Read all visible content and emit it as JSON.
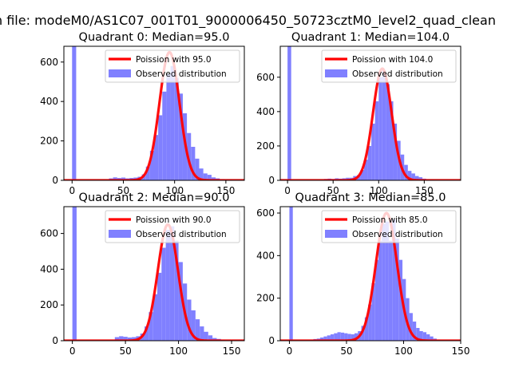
{
  "figure_title": "n file: modeM0/AS1C07_001T01_9000006450_50723cztM0_level2_quad_clean",
  "colors": {
    "poisson": "#ff0000",
    "observed": "#8080ff",
    "frame": "#000000"
  },
  "chart_data": [
    {
      "type": "bar",
      "title": "Quadrant 0: Median=95.0",
      "xlim": [
        -8,
        168
      ],
      "ylim": [
        0,
        680
      ],
      "xticks": [
        0,
        50,
        100,
        150
      ],
      "yticks": [
        0,
        200,
        400,
        600
      ],
      "legend": "top-right",
      "poisson_mean": 95,
      "series": [
        {
          "name": "Poission with 95.0",
          "kind": "line",
          "mean": 95,
          "peak": 650
        },
        {
          "name": "Observed distribution",
          "kind": "histogram",
          "bin_width": 4,
          "bins": [
            [
              0,
              680
            ],
            [
              36,
              10
            ],
            [
              40,
              15
            ],
            [
              44,
              12
            ],
            [
              48,
              14
            ],
            [
              52,
              10
            ],
            [
              56,
              12
            ],
            [
              60,
              14
            ],
            [
              64,
              18
            ],
            [
              68,
              30
            ],
            [
              72,
              70
            ],
            [
              76,
              150
            ],
            [
              80,
              230
            ],
            [
              84,
              330
            ],
            [
              88,
              450
            ],
            [
              92,
              540
            ],
            [
              96,
              580
            ],
            [
              100,
              520
            ],
            [
              104,
              440
            ],
            [
              108,
              340
            ],
            [
              112,
              240
            ],
            [
              116,
              170
            ],
            [
              120,
              110
            ],
            [
              124,
              60
            ],
            [
              128,
              35
            ],
            [
              132,
              28
            ],
            [
              136,
              15
            ],
            [
              140,
              10
            ],
            [
              144,
              6
            ],
            [
              148,
              4
            ],
            [
              152,
              3
            ]
          ]
        }
      ]
    },
    {
      "type": "bar",
      "title": "Quadrant 1: Median=104.0",
      "xlim": [
        -8,
        190
      ],
      "ylim": [
        0,
        780
      ],
      "xticks": [
        0,
        50,
        100,
        150
      ],
      "yticks": [
        0,
        200,
        400,
        600
      ],
      "legend": "top-right",
      "poisson_mean": 104,
      "series": [
        {
          "name": "Poission with 104.0",
          "kind": "line",
          "mean": 104,
          "peak": 650
        },
        {
          "name": "Observed distribution",
          "kind": "histogram",
          "bin_width": 4,
          "bins": [
            [
              0,
              780
            ],
            [
              40,
              8
            ],
            [
              44,
              10
            ],
            [
              48,
              8
            ],
            [
              52,
              12
            ],
            [
              56,
              10
            ],
            [
              60,
              12
            ],
            [
              64,
              15
            ],
            [
              68,
              15
            ],
            [
              72,
              25
            ],
            [
              76,
              30
            ],
            [
              80,
              60
            ],
            [
              84,
              120
            ],
            [
              88,
              200
            ],
            [
              92,
              330
            ],
            [
              96,
              460
            ],
            [
              100,
              600
            ],
            [
              104,
              640
            ],
            [
              108,
              560
            ],
            [
              112,
              460
            ],
            [
              116,
              330
            ],
            [
              120,
              230
            ],
            [
              124,
              150
            ],
            [
              128,
              90
            ],
            [
              132,
              55
            ],
            [
              136,
              40
            ],
            [
              140,
              25
            ],
            [
              144,
              18
            ],
            [
              148,
              10
            ],
            [
              152,
              6
            ],
            [
              156,
              4
            ],
            [
              160,
              3
            ],
            [
              164,
              2
            ]
          ]
        }
      ]
    },
    {
      "type": "bar",
      "title": "Quadrant 2: Median=90.0",
      "xlim": [
        -8,
        162
      ],
      "ylim": [
        0,
        750
      ],
      "xticks": [
        0,
        50,
        100,
        150
      ],
      "yticks": [
        0,
        200,
        400,
        600
      ],
      "legend": "top-right",
      "poisson_mean": 90,
      "series": [
        {
          "name": "Poission with 90.0",
          "kind": "line",
          "mean": 90,
          "peak": 650
        },
        {
          "name": "Observed distribution",
          "kind": "histogram",
          "bin_width": 4,
          "bins": [
            [
              0,
              750
            ],
            [
              40,
              20
            ],
            [
              44,
              25
            ],
            [
              48,
              22
            ],
            [
              52,
              18
            ],
            [
              56,
              20
            ],
            [
              60,
              25
            ],
            [
              64,
              40
            ],
            [
              68,
              80
            ],
            [
              72,
              160
            ],
            [
              76,
              260
            ],
            [
              80,
              380
            ],
            [
              84,
              520
            ],
            [
              88,
              620
            ],
            [
              92,
              640
            ],
            [
              96,
              560
            ],
            [
              100,
              440
            ],
            [
              104,
              320
            ],
            [
              108,
              230
            ],
            [
              112,
              170
            ],
            [
              116,
              120
            ],
            [
              120,
              80
            ],
            [
              124,
              50
            ],
            [
              128,
              30
            ],
            [
              132,
              15
            ],
            [
              136,
              10
            ],
            [
              140,
              5
            ]
          ]
        }
      ]
    },
    {
      "type": "bar",
      "title": "Quadrant 3: Median=85.0",
      "xlim": [
        -8,
        150
      ],
      "ylim": [
        0,
        630
      ],
      "xticks": [
        0,
        50,
        100,
        150
      ],
      "yticks": [
        0,
        200,
        400,
        600
      ],
      "legend": "top-right",
      "poisson_mean": 85,
      "series": [
        {
          "name": "Poission with 85.0",
          "kind": "line",
          "mean": 85,
          "peak": 600
        },
        {
          "name": "Observed distribution",
          "kind": "histogram",
          "bin_width": 3,
          "bins": [
            [
              0,
              630
            ],
            [
              18,
              5
            ],
            [
              21,
              8
            ],
            [
              24,
              10
            ],
            [
              27,
              15
            ],
            [
              30,
              20
            ],
            [
              33,
              25
            ],
            [
              36,
              30
            ],
            [
              39,
              35
            ],
            [
              42,
              40
            ],
            [
              45,
              38
            ],
            [
              48,
              35
            ],
            [
              51,
              32
            ],
            [
              54,
              30
            ],
            [
              57,
              35
            ],
            [
              60,
              45
            ],
            [
              63,
              70
            ],
            [
              66,
              110
            ],
            [
              69,
              170
            ],
            [
              72,
              270
            ],
            [
              75,
              380
            ],
            [
              78,
              470
            ],
            [
              81,
              550
            ],
            [
              84,
              560
            ],
            [
              87,
              470
            ],
            [
              90,
              570
            ],
            [
              93,
              480
            ],
            [
              96,
              380
            ],
            [
              99,
              290
            ],
            [
              102,
              200
            ],
            [
              105,
              130
            ],
            [
              108,
              90
            ],
            [
              111,
              60
            ],
            [
              114,
              45
            ],
            [
              117,
              40
            ],
            [
              120,
              30
            ],
            [
              123,
              20
            ],
            [
              126,
              10
            ],
            [
              129,
              5
            ]
          ]
        }
      ]
    }
  ]
}
